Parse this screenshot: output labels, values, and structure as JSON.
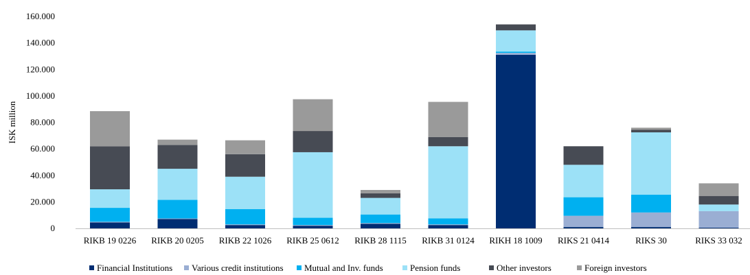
{
  "chart_data": {
    "type": "bar",
    "stacked": true,
    "title": "",
    "xlabel": "",
    "ylabel": "ISK million",
    "ylim": [
      0,
      160000
    ],
    "yticks": [
      "0",
      "20.000",
      "40.000",
      "60.000",
      "80.000",
      "100.000",
      "120.000",
      "140.000",
      "160.000"
    ],
    "grid": false,
    "legend_position": "bottom",
    "categories": [
      "RIKB 19 0226",
      "RIKB 20 0205",
      "RIKB 22 1026",
      "RIKB 25 0612",
      "RIKB 28 1115",
      "RIKB 31 0124",
      "RIKH 18 1009",
      "RIKS 21 0414",
      "RIKS 30",
      "RIKS 33 032"
    ],
    "series": [
      {
        "name": "Financial Institutions",
        "color": "#002d72",
        "values": [
          4500,
          7000,
          2500,
          2000,
          3500,
          2500,
          131000,
          1000,
          1000,
          500
        ]
      },
      {
        "name": "Various credit institutions",
        "color": "#9aaed3",
        "values": [
          500,
          500,
          500,
          500,
          500,
          500,
          1500,
          8500,
          11000,
          12500
        ]
      },
      {
        "name": "Mutual and Inv. funds",
        "color": "#00b0f0",
        "values": [
          10500,
          14000,
          11500,
          5500,
          6500,
          4500,
          1000,
          14000,
          13500,
          0
        ]
      },
      {
        "name": "Pension funds",
        "color": "#9ce1f7",
        "values": [
          14000,
          23500,
          24500,
          49500,
          12500,
          54500,
          16000,
          24500,
          47000,
          5000
        ]
      },
      {
        "name": "Other investors",
        "color": "#474b54",
        "values": [
          32500,
          18000,
          17000,
          16000,
          3500,
          7000,
          4500,
          14000,
          2000,
          6500
        ]
      },
      {
        "name": "Foreign investors",
        "color": "#9a9a9a",
        "values": [
          26500,
          4000,
          10500,
          24000,
          2500,
          26500,
          0,
          0,
          1500,
          9500
        ]
      }
    ]
  }
}
